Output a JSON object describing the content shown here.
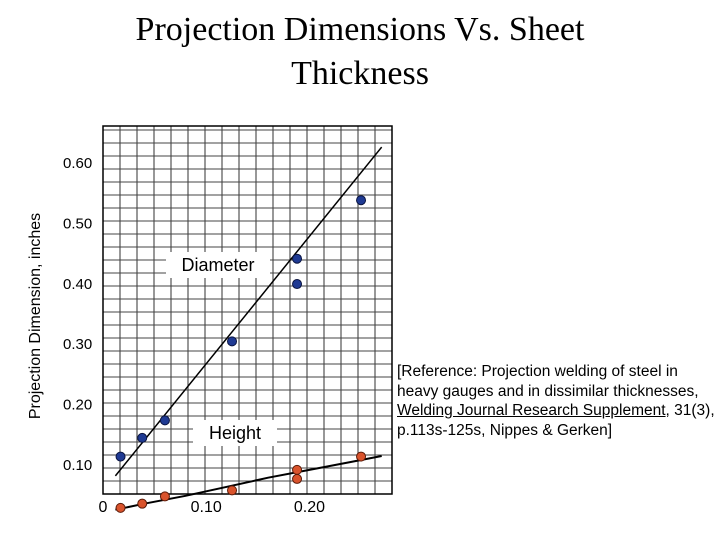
{
  "title": {
    "line1": "Projection Dimensions Vs. Sheet",
    "line2": "Thickness"
  },
  "colors": {
    "diameter_marker": "#1f3a93",
    "height_marker": "#d9532c",
    "grid": "#444444"
  },
  "reference": {
    "prefix": "[Reference:  Projection welding of steel in heavy gauges and in dissimilar thicknesses, ",
    "journal": "Welding Journal Research Supplement",
    "suffix": ", 31(3), p.113s-125s, Nippes & Gerken]"
  },
  "chart_data": {
    "type": "scatter",
    "title": "Projection Dimensions Vs. Sheet Thickness",
    "xlabel": "",
    "ylabel": "Projection Dimension, inches",
    "xlim": [
      0,
      0.28
    ],
    "ylim": [
      0.05,
      0.66
    ],
    "x_ticks": [
      {
        "value": 0,
        "label": "0"
      },
      {
        "value": 0.1,
        "label": "0.10"
      },
      {
        "value": 0.2,
        "label": "0.20"
      }
    ],
    "y_ticks": [
      {
        "value": 0.1,
        "label": "0.10"
      },
      {
        "value": 0.2,
        "label": "0.20"
      },
      {
        "value": 0.3,
        "label": "0.30"
      },
      {
        "value": 0.4,
        "label": "0.40"
      },
      {
        "value": 0.5,
        "label": "0.50"
      },
      {
        "value": 0.6,
        "label": "0.60"
      }
    ],
    "grid": true,
    "series": [
      {
        "name": "Diameter",
        "points": [
          {
            "x": 0.017,
            "y": 0.112
          },
          {
            "x": 0.038,
            "y": 0.143
          },
          {
            "x": 0.06,
            "y": 0.172
          },
          {
            "x": 0.125,
            "y": 0.303
          },
          {
            "x": 0.188,
            "y": 0.44
          },
          {
            "x": 0.188,
            "y": 0.398
          },
          {
            "x": 0.25,
            "y": 0.537
          }
        ],
        "fit_line": [
          {
            "x": 0.012,
            "y": 0.08
          },
          {
            "x": 0.27,
            "y": 0.625
          }
        ]
      },
      {
        "name": "Height",
        "points": [
          {
            "x": 0.017,
            "y": 0.027
          },
          {
            "x": 0.038,
            "y": 0.034
          },
          {
            "x": 0.06,
            "y": 0.046
          },
          {
            "x": 0.125,
            "y": 0.056
          },
          {
            "x": 0.188,
            "y": 0.075
          },
          {
            "x": 0.188,
            "y": 0.09
          },
          {
            "x": 0.25,
            "y": 0.112
          }
        ],
        "fit_curve": [
          {
            "x": 0.012,
            "y": 0.024
          },
          {
            "x": 0.04,
            "y": 0.034
          },
          {
            "x": 0.08,
            "y": 0.047
          },
          {
            "x": 0.12,
            "y": 0.062
          },
          {
            "x": 0.16,
            "y": 0.077
          },
          {
            "x": 0.2,
            "y": 0.09
          },
          {
            "x": 0.24,
            "y": 0.103
          },
          {
            "x": 0.27,
            "y": 0.113
          }
        ]
      }
    ]
  }
}
